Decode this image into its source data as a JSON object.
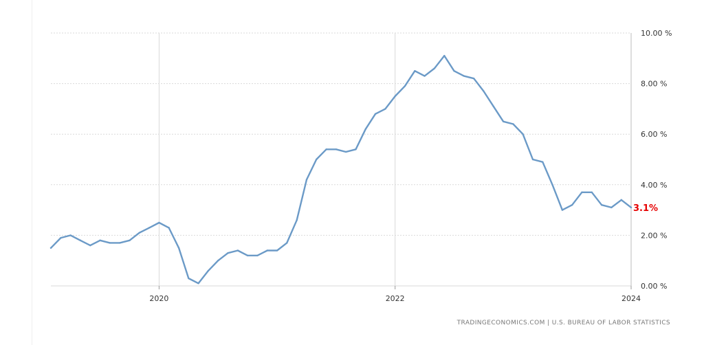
{
  "chart_data": {
    "type": "line",
    "title": "",
    "xlabel": "",
    "ylabel": "",
    "x_tick_labels": [
      "2020",
      "2022",
      "2024"
    ],
    "y_tick_labels": [
      "0.00 %",
      "2.00 %",
      "4.00 %",
      "6.00 %",
      "8.00 %",
      "10.00 %"
    ],
    "ylim": [
      0,
      10
    ],
    "xlim": [
      2019.083,
      2024.0
    ],
    "grid": true,
    "series": [
      {
        "values": [
          {
            "x": 2019.083,
            "y": 1.5
          },
          {
            "x": 2019.167,
            "y": 1.9
          },
          {
            "x": 2019.25,
            "y": 2.0
          },
          {
            "x": 2019.333,
            "y": 1.8
          },
          {
            "x": 2019.417,
            "y": 1.6
          },
          {
            "x": 2019.5,
            "y": 1.8
          },
          {
            "x": 2019.583,
            "y": 1.7
          },
          {
            "x": 2019.667,
            "y": 1.7
          },
          {
            "x": 2019.75,
            "y": 1.8
          },
          {
            "x": 2019.833,
            "y": 2.1
          },
          {
            "x": 2019.917,
            "y": 2.3
          },
          {
            "x": 2020.0,
            "y": 2.5
          },
          {
            "x": 2020.083,
            "y": 2.3
          },
          {
            "x": 2020.167,
            "y": 1.5
          },
          {
            "x": 2020.25,
            "y": 0.3
          },
          {
            "x": 2020.333,
            "y": 0.1
          },
          {
            "x": 2020.417,
            "y": 0.6
          },
          {
            "x": 2020.5,
            "y": 1.0
          },
          {
            "x": 2020.583,
            "y": 1.3
          },
          {
            "x": 2020.667,
            "y": 1.4
          },
          {
            "x": 2020.75,
            "y": 1.2
          },
          {
            "x": 2020.833,
            "y": 1.2
          },
          {
            "x": 2020.917,
            "y": 1.4
          },
          {
            "x": 2021.0,
            "y": 1.4
          },
          {
            "x": 2021.083,
            "y": 1.7
          },
          {
            "x": 2021.167,
            "y": 2.6
          },
          {
            "x": 2021.25,
            "y": 4.2
          },
          {
            "x": 2021.333,
            "y": 5.0
          },
          {
            "x": 2021.417,
            "y": 5.4
          },
          {
            "x": 2021.5,
            "y": 5.4
          },
          {
            "x": 2021.583,
            "y": 5.3
          },
          {
            "x": 2021.667,
            "y": 5.4
          },
          {
            "x": 2021.75,
            "y": 6.2
          },
          {
            "x": 2021.833,
            "y": 6.8
          },
          {
            "x": 2021.917,
            "y": 7.0
          },
          {
            "x": 2022.0,
            "y": 7.5
          },
          {
            "x": 2022.083,
            "y": 7.9
          },
          {
            "x": 2022.167,
            "y": 8.5
          },
          {
            "x": 2022.25,
            "y": 8.3
          },
          {
            "x": 2022.333,
            "y": 8.6
          },
          {
            "x": 2022.417,
            "y": 9.1
          },
          {
            "x": 2022.5,
            "y": 8.5
          },
          {
            "x": 2022.583,
            "y": 8.3
          },
          {
            "x": 2022.667,
            "y": 8.2
          },
          {
            "x": 2022.75,
            "y": 7.7
          },
          {
            "x": 2022.833,
            "y": 7.1
          },
          {
            "x": 2022.917,
            "y": 6.5
          },
          {
            "x": 2023.0,
            "y": 6.4
          },
          {
            "x": 2023.083,
            "y": 6.0
          },
          {
            "x": 2023.167,
            "y": 5.0
          },
          {
            "x": 2023.25,
            "y": 4.9
          },
          {
            "x": 2023.333,
            "y": 4.0
          },
          {
            "x": 2023.417,
            "y": 3.0
          },
          {
            "x": 2023.5,
            "y": 3.2
          },
          {
            "x": 2023.583,
            "y": 3.7
          },
          {
            "x": 2023.667,
            "y": 3.7
          },
          {
            "x": 2023.75,
            "y": 3.2
          },
          {
            "x": 2023.833,
            "y": 3.1
          },
          {
            "x": 2023.917,
            "y": 3.4
          },
          {
            "x": 2024.0,
            "y": 3.1
          }
        ]
      }
    ],
    "last_value_label": "3.1%",
    "source": "TRADINGECONOMICS.COM  |  U.S. BUREAU OF LABOR STATISTICS"
  },
  "colors": {
    "line": "#6b9ac7",
    "grid": "#d9d9d9",
    "last_label": "#e60000"
  }
}
